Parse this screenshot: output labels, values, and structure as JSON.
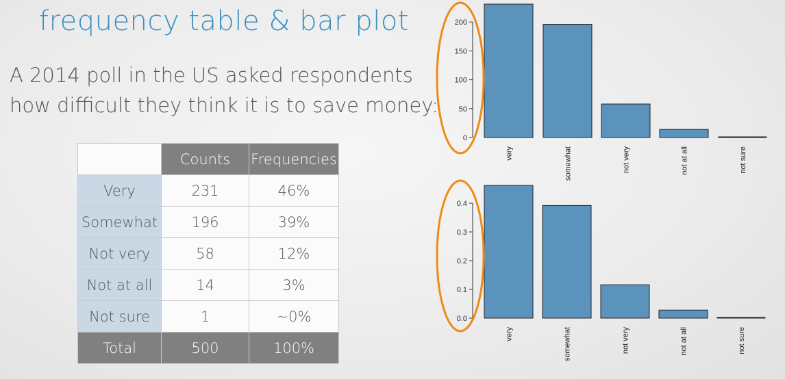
{
  "slide": {
    "title": "frequency table & bar plot",
    "intro_line1": "A 2014 poll in the US asked respondents",
    "intro_line2": "how difficult they think it is to save money:"
  },
  "table": {
    "headers": [
      "",
      "Counts",
      "Frequencies"
    ],
    "rows": [
      {
        "label": "Very",
        "count": "231",
        "freq": "46%"
      },
      {
        "label": "Somewhat",
        "count": "196",
        "freq": "39%"
      },
      {
        "label": "Not very",
        "count": "58",
        "freq": "12%"
      },
      {
        "label": "Not at all",
        "count": "14",
        "freq": "3%"
      },
      {
        "label": "Not sure",
        "count": "1",
        "freq": "~0%"
      }
    ],
    "total": {
      "label": "Total",
      "count": "500",
      "freq": "100%"
    }
  },
  "colors": {
    "bar": "#5b93bc",
    "highlight": "#f08a16",
    "title": "#3b8fc0"
  },
  "chart_data": [
    {
      "type": "bar",
      "categories": [
        "very",
        "somewhat",
        "not very",
        "not at all",
        "not sure"
      ],
      "values": [
        231,
        196,
        58,
        14,
        1
      ],
      "ylim": [
        0,
        231
      ],
      "yticks": [
        0,
        50,
        100,
        150,
        200
      ],
      "ytick_labels": [
        "0",
        "50",
        "100",
        "150",
        "200"
      ],
      "title": "",
      "xlabel": "",
      "ylabel": "",
      "grid": false
    },
    {
      "type": "bar",
      "categories": [
        "very",
        "somewhat",
        "not very",
        "not at all",
        "not sure"
      ],
      "values": [
        0.462,
        0.392,
        0.116,
        0.028,
        0.002
      ],
      "ylim": [
        0,
        0.462
      ],
      "yticks": [
        0.0,
        0.1,
        0.2,
        0.3,
        0.4
      ],
      "ytick_labels": [
        "0.0",
        "0.1",
        "0.2",
        "0.3",
        "0.4"
      ],
      "title": "",
      "xlabel": "",
      "ylabel": "",
      "grid": false
    }
  ]
}
